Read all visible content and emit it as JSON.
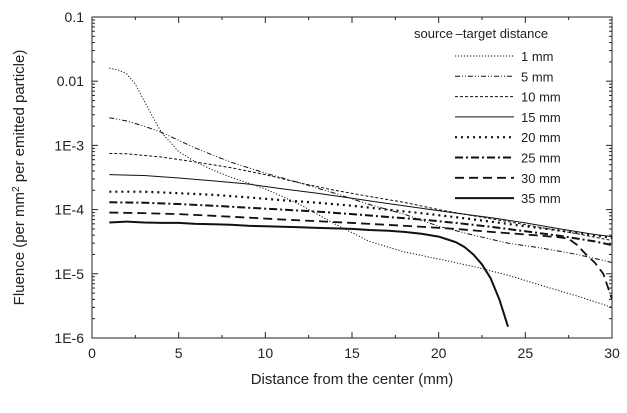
{
  "chart_data": {
    "type": "line",
    "title": "",
    "xlabel": "Distance from the center (mm)",
    "ylabel_parts": [
      "Fluence (per mm",
      "2",
      " per emitted particle)"
    ],
    "xlim": [
      0,
      30
    ],
    "ylim": [
      1e-06,
      0.1
    ],
    "yscale": "log",
    "grid": false,
    "legend_position": "top-right",
    "legend_title": "source –target distance",
    "x_ticks": [
      0,
      5,
      10,
      15,
      20,
      25,
      30
    ],
    "y_ticks": [
      {
        "value": 1e-06,
        "label": "1E-6"
      },
      {
        "value": 1e-05,
        "label": "1E-5"
      },
      {
        "value": 0.0001,
        "label": "1E-4"
      },
      {
        "value": 0.001,
        "label": "1E-3"
      },
      {
        "value": 0.01,
        "label": "0.01"
      },
      {
        "value": 0.1,
        "label": "0.1"
      }
    ],
    "series": [
      {
        "name": "1 mm",
        "style": "dotted-fine",
        "x": [
          1,
          1.5,
          2,
          2.5,
          3,
          3.5,
          4,
          5,
          6,
          7,
          8,
          9,
          10,
          12,
          14,
          16,
          18,
          20,
          22,
          24,
          26,
          28,
          30
        ],
        "y": [
          0.016,
          0.015,
          0.013,
          0.009,
          0.005,
          0.0028,
          0.0016,
          0.0008,
          0.00055,
          0.00041,
          0.00032,
          0.00026,
          0.00021,
          0.00012,
          6e-05,
          3.2e-05,
          2.2e-05,
          1.7e-05,
          1.3e-05,
          9.5e-06,
          6.5e-06,
          4.5e-06,
          3e-06
        ]
      },
      {
        "name": "5 mm",
        "style": "dash-dot-dot",
        "x": [
          1,
          2,
          3,
          4,
          5,
          6,
          7,
          8,
          9,
          10,
          12,
          14,
          16,
          18,
          20,
          22,
          24,
          26,
          28,
          30
        ],
        "y": [
          0.0027,
          0.0024,
          0.002,
          0.0016,
          0.0012,
          0.0009,
          0.0007,
          0.00055,
          0.00045,
          0.00037,
          0.00026,
          0.00018,
          0.00012,
          8.5e-05,
          5.5e-05,
          4e-05,
          3e-05,
          2.5e-05,
          2e-05,
          1.5e-05
        ]
      },
      {
        "name": "10 mm",
        "style": "dashed-fine",
        "x": [
          1,
          2,
          4,
          6,
          8,
          10,
          12,
          14,
          16,
          18,
          20,
          22,
          24,
          26,
          28,
          30
        ],
        "y": [
          0.00075,
          0.00074,
          0.00066,
          0.00055,
          0.00045,
          0.00035,
          0.00026,
          0.0002,
          0.00016,
          0.00013,
          0.0001,
          8e-05,
          6.5e-05,
          5.2e-05,
          4.2e-05,
          3.3e-05
        ]
      },
      {
        "name": "15 mm",
        "style": "solid-thin",
        "x": [
          1,
          3,
          5,
          7,
          9,
          11,
          13,
          15,
          17,
          19,
          21,
          23,
          25,
          27,
          29,
          30
        ],
        "y": [
          0.00035,
          0.00034,
          0.00031,
          0.00028,
          0.00025,
          0.00021,
          0.00018,
          0.00015,
          0.000125,
          0.000105,
          8.8e-05,
          7.5e-05,
          6.2e-05,
          5e-05,
          4.1e-05,
          3.8e-05
        ]
      },
      {
        "name": "20 mm",
        "style": "dotted-bold",
        "x": [
          1,
          3,
          5,
          7,
          9,
          11,
          13,
          15,
          17,
          19,
          21,
          23,
          25,
          27,
          29,
          30
        ],
        "y": [
          0.00019,
          0.00019,
          0.00018,
          0.00017,
          0.000155,
          0.00014,
          0.000128,
          0.000115,
          0.0001,
          8.8e-05,
          7.6e-05,
          6.5e-05,
          5.5e-05,
          4.7e-05,
          4e-05,
          3.6e-05
        ]
      },
      {
        "name": "25 mm",
        "style": "dash-dot-bold",
        "x": [
          1,
          3,
          5,
          7,
          9,
          11,
          13,
          15,
          17,
          19,
          21,
          23,
          25,
          27,
          29,
          30
        ],
        "y": [
          0.00013,
          0.000128,
          0.000122,
          0.000115,
          0.000107,
          0.0001,
          9.3e-05,
          8.5e-05,
          7.7e-05,
          7e-05,
          6.2e-05,
          5.4e-05,
          4.6e-05,
          3.9e-05,
          3.2e-05,
          2.8e-05
        ]
      },
      {
        "name": "30 mm",
        "style": "dashed-bold",
        "x": [
          1,
          3,
          5,
          7,
          9,
          11,
          13,
          15,
          17,
          19,
          21,
          23,
          25,
          26,
          27,
          27.5,
          28,
          28.5,
          29,
          29.5,
          30
        ],
        "y": [
          9e-05,
          8.8e-05,
          8.5e-05,
          8e-05,
          7.5e-05,
          7e-05,
          6.6e-05,
          6.2e-05,
          5.8e-05,
          5.4e-05,
          5e-05,
          4.5e-05,
          4.1e-05,
          3.9e-05,
          3.7e-05,
          3.5e-05,
          2.8e-05,
          2e-05,
          1.5e-05,
          1e-05,
          4e-06
        ]
      },
      {
        "name": "35 mm",
        "style": "solid-bold",
        "x": [
          1,
          2,
          3,
          4,
          5,
          6,
          7,
          8,
          9,
          10,
          11,
          12,
          13,
          14,
          15,
          16,
          17,
          18,
          19,
          20,
          21,
          21.5,
          22,
          22.5,
          23,
          23.5,
          24
        ],
        "y": [
          6.3e-05,
          6.5e-05,
          6.3e-05,
          6.2e-05,
          6.2e-05,
          6e-05,
          5.9e-05,
          5.8e-05,
          5.6e-05,
          5.5e-05,
          5.4e-05,
          5.3e-05,
          5.2e-05,
          5.1e-05,
          5e-05,
          4.8e-05,
          4.7e-05,
          4.5e-05,
          4.2e-05,
          3.8e-05,
          3.1e-05,
          2.6e-05,
          2e-05,
          1.4e-05,
          8.5e-06,
          4e-06,
          1.5e-06
        ]
      }
    ]
  }
}
